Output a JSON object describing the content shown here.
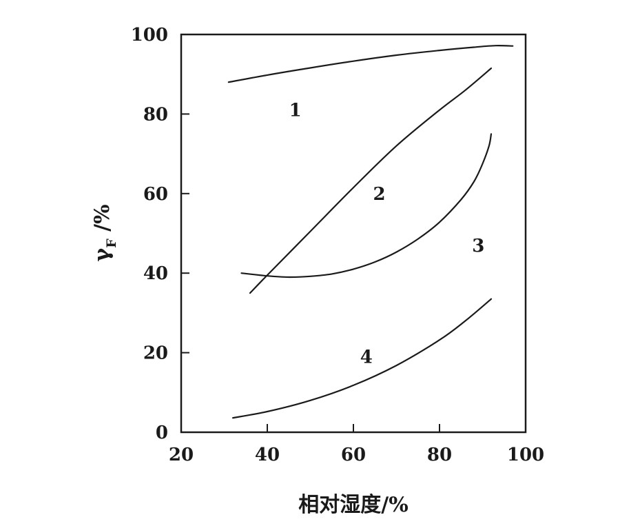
{
  "chart_data": {
    "type": "line",
    "xlabel": "相对湿度/%",
    "ylabel": {
      "main": "γ",
      "sub": "F",
      "suffix": " /%"
    },
    "xlim": [
      20,
      100
    ],
    "ylim": [
      0,
      100
    ],
    "xticks": [
      20,
      40,
      60,
      80,
      100
    ],
    "yticks": [
      0,
      20,
      40,
      60,
      80,
      100
    ],
    "grid": false,
    "line_color": "#1a1a1a",
    "series": [
      {
        "label": "1",
        "points": [
          [
            31,
            88
          ],
          [
            40,
            89.8
          ],
          [
            50,
            91.6
          ],
          [
            60,
            93.3
          ],
          [
            70,
            94.8
          ],
          [
            80,
            96.0
          ],
          [
            88,
            96.8
          ],
          [
            93,
            97.2
          ],
          [
            97,
            97.1
          ]
        ],
        "label_at": [
          46.5,
          81
        ]
      },
      {
        "label": "2",
        "points": [
          [
            36,
            35
          ],
          [
            40,
            39.5
          ],
          [
            50,
            50.5
          ],
          [
            60,
            61.5
          ],
          [
            70,
            72
          ],
          [
            80,
            81
          ],
          [
            86,
            86
          ],
          [
            92,
            91.5
          ]
        ],
        "label_at": [
          66,
          60
        ]
      },
      {
        "label": "3",
        "points": [
          [
            34,
            40
          ],
          [
            40,
            39.3
          ],
          [
            45,
            39.0
          ],
          [
            50,
            39.2
          ],
          [
            55,
            39.8
          ],
          [
            60,
            41
          ],
          [
            65,
            42.8
          ],
          [
            70,
            45.3
          ],
          [
            75,
            48.6
          ],
          [
            80,
            52.8
          ],
          [
            85,
            58.5
          ],
          [
            88,
            63
          ],
          [
            90,
            67.5
          ],
          [
            91.5,
            72
          ],
          [
            92,
            75
          ]
        ],
        "label_at": [
          89,
          47
        ]
      },
      {
        "label": "4",
        "points": [
          [
            32,
            3.6
          ],
          [
            40,
            5.2
          ],
          [
            50,
            8.0
          ],
          [
            60,
            11.8
          ],
          [
            70,
            16.8
          ],
          [
            80,
            23.2
          ],
          [
            86,
            28
          ],
          [
            92,
            33.5
          ]
        ],
        "label_at": [
          63,
          19
        ]
      }
    ]
  }
}
